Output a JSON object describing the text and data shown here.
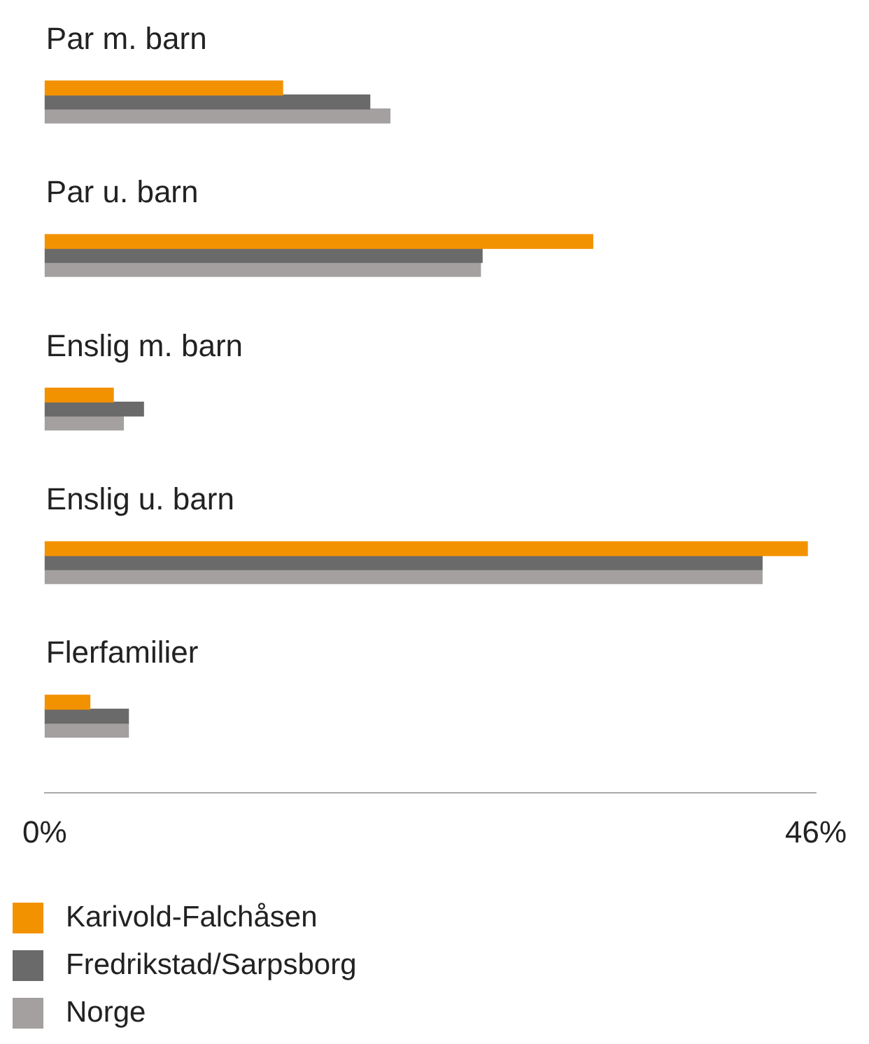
{
  "chart_data": {
    "type": "bar",
    "orientation": "horizontal",
    "categories": [
      "Par m. barn",
      "Par u. barn",
      "Enslig m. barn",
      "Enslig u. barn",
      "Flerfamilier"
    ],
    "series": [
      {
        "name": "Karivold-Falchåsen",
        "color": "#f39200",
        "values": [
          14.2,
          32.7,
          4.1,
          45.5,
          2.7
        ]
      },
      {
        "name": "Fredrikstad/Sarpsborg",
        "color": "#6a6a6a",
        "values": [
          19.4,
          26.1,
          5.9,
          42.8,
          5.0
        ]
      },
      {
        "name": "Norge",
        "color": "#a3a09f",
        "values": [
          20.6,
          26.0,
          4.7,
          42.8,
          5.0
        ]
      }
    ],
    "xlim": [
      0,
      46
    ],
    "xticks": [
      {
        "value": 0,
        "label": "0%"
      },
      {
        "value": 46,
        "label": "46%"
      }
    ],
    "grid": false,
    "legend": "bottom"
  }
}
